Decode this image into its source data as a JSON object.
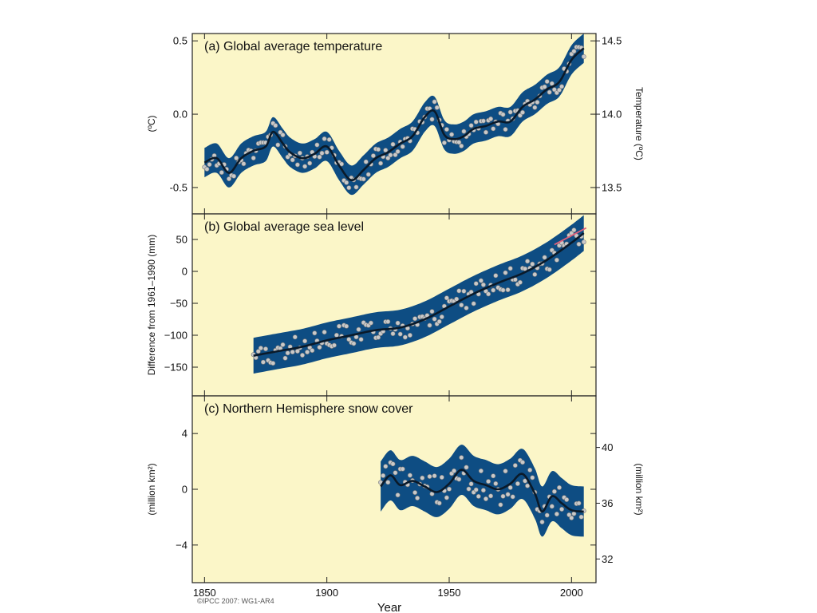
{
  "colors": {
    "panel_bg": "#fbf6c8",
    "band": "#0e4d83",
    "line": "#0a1a2a",
    "point": "#c9c9c9",
    "frame": "#222222",
    "satellite_line": "#e0607a"
  },
  "xaxis": {
    "label": "Year",
    "ticks": [
      "1850",
      "1900",
      "1950",
      "2000"
    ]
  },
  "credit": "©IPCC 2007: WG1-AR4",
  "chart_data": [
    {
      "type": "line",
      "title": "(a) Global average temperature",
      "ylabel": "(ºC)",
      "y2label": "Temperature (ºC)",
      "xlim": [
        1845,
        2010
      ],
      "ylim": [
        -0.68,
        0.55
      ],
      "yticks": [
        0.5,
        0.0,
        -0.5
      ],
      "ytick_labels": [
        "0.5",
        "0.0",
        "-0.5"
      ],
      "y2ticks": [
        0.5,
        0.0,
        -0.5
      ],
      "y2tick_labels": [
        "14.5",
        "14.0",
        "13.5"
      ],
      "band_halfwidth": 0.1,
      "series": [
        {
          "x": [
            1850,
            1855,
            1860,
            1865,
            1870,
            1875,
            1878,
            1882,
            1885,
            1890,
            1895,
            1900,
            1905,
            1910,
            1915,
            1920,
            1925,
            1930,
            1935,
            1940,
            1944,
            1948,
            1952,
            1956,
            1960,
            1965,
            1970,
            1975,
            1980,
            1985,
            1990,
            1995,
            2000,
            2005
          ],
          "y": [
            -0.33,
            -0.3,
            -0.4,
            -0.3,
            -0.25,
            -0.22,
            -0.12,
            -0.2,
            -0.26,
            -0.3,
            -0.27,
            -0.22,
            -0.35,
            -0.45,
            -0.38,
            -0.3,
            -0.26,
            -0.2,
            -0.15,
            -0.02,
            0.02,
            -0.14,
            -0.17,
            -0.15,
            -0.1,
            -0.08,
            -0.05,
            -0.05,
            0.05,
            0.1,
            0.17,
            0.22,
            0.37,
            0.45
          ]
        }
      ]
    },
    {
      "type": "line",
      "title": "(b) Global average sea level",
      "ylabel": "Difference from 1961–1990 (mm)",
      "xlim": [
        1845,
        2010
      ],
      "ylim": [
        -195,
        90
      ],
      "yticks": [
        50,
        0,
        -50,
        -100,
        -150
      ],
      "ytick_labels": [
        "50",
        "0",
        "−50",
        "−100",
        "−150"
      ],
      "band_halfwidth": 28,
      "series": [
        {
          "x": [
            1870,
            1880,
            1890,
            1900,
            1910,
            1920,
            1930,
            1940,
            1950,
            1960,
            1970,
            1980,
            1990,
            2000,
            2005
          ],
          "y": [
            -132,
            -125,
            -118,
            -108,
            -100,
            -92,
            -88,
            -75,
            -55,
            -35,
            -18,
            -3,
            18,
            45,
            60
          ]
        },
        {
          "x": [
            1993,
            2006
          ],
          "y": [
            42,
            68
          ]
        }
      ]
    },
    {
      "type": "line",
      "title": "(c) Northern Hemisphere snow cover",
      "ylabel": "(million km²)",
      "y2label": "(million km²)",
      "xlim": [
        1845,
        2010
      ],
      "ylim": [
        -6.7,
        6.7
      ],
      "yticks": [
        4,
        0,
        -4
      ],
      "ytick_labels": [
        "4",
        "0",
        "−4"
      ],
      "y2ticks": [
        3,
        -1,
        -5
      ],
      "y2tick_labels": [
        "40",
        "36",
        "32"
      ],
      "band_halfwidth": 1.8,
      "series": [
        {
          "x": [
            1922,
            1926,
            1930,
            1935,
            1940,
            1945,
            1950,
            1955,
            1960,
            1965,
            1970,
            1975,
            1980,
            1985,
            1988,
            1992,
            1996,
            2000,
            2005
          ],
          "y": [
            0.2,
            1.0,
            0.3,
            0.6,
            0.2,
            -0.2,
            0.4,
            1.4,
            0.6,
            0.3,
            0.0,
            0.4,
            1.1,
            -0.3,
            -1.6,
            -0.5,
            -1.0,
            -1.5,
            -1.6
          ]
        }
      ]
    }
  ]
}
